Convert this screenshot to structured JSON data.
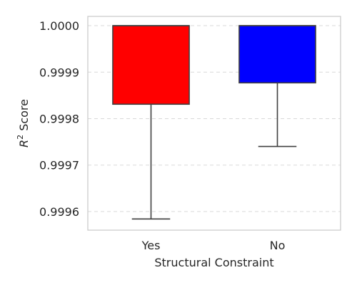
{
  "chart_data": {
    "type": "box",
    "title": "",
    "xlabel": "Structural Constraint",
    "ylabel_prefix": "R",
    "ylabel_superscript": "2",
    "ylabel_suffix": " Score",
    "ylim": [
      0.99956,
      1.00002
    ],
    "yticks": [
      0.9996,
      0.9997,
      0.9998,
      0.9999,
      1.0
    ],
    "ytick_labels": [
      "0.9996",
      "0.9997",
      "0.9998",
      "0.9999",
      "1.0000"
    ],
    "grid": true,
    "grid_axis": "y",
    "categories": [
      "Yes",
      "No"
    ],
    "boxes": [
      {
        "category": "Yes",
        "color": "#ff0000",
        "whisker_low": 0.999584,
        "q1": 0.999831,
        "median": 1.0,
        "q3": 1.0,
        "whisker_high": 1.0
      },
      {
        "category": "No",
        "color": "#0000ff",
        "whisker_low": 0.99974,
        "q1": 0.999877,
        "median": 1.0,
        "q3": 1.0,
        "whisker_high": 1.0
      }
    ]
  }
}
